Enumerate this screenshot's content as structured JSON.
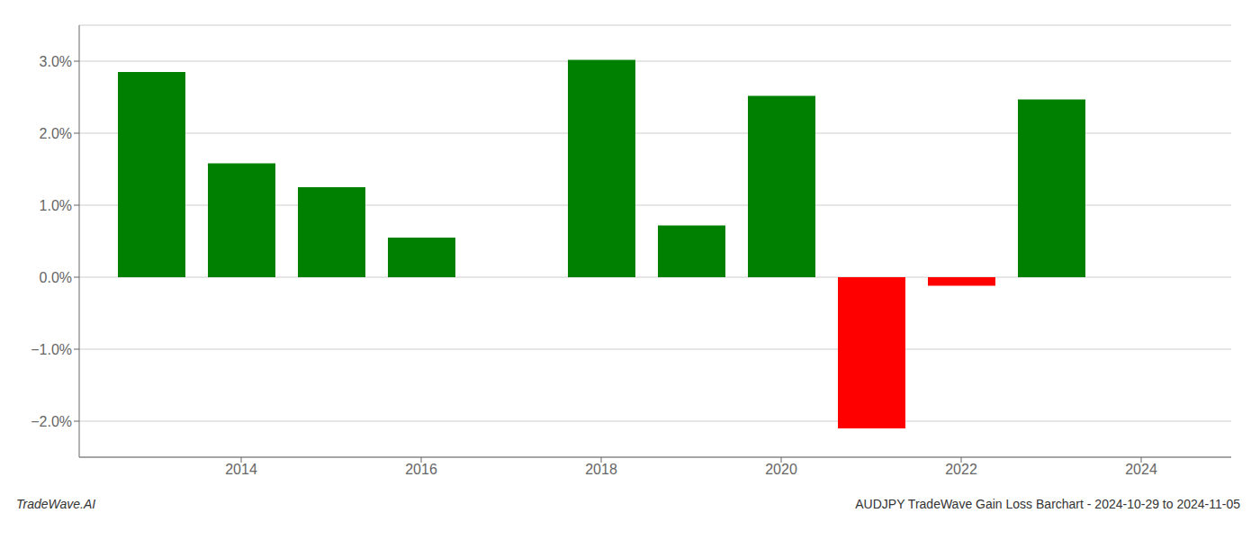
{
  "chart_data": {
    "type": "bar",
    "title": "AUDJPY TradeWave Gain Loss Barchart - 2024-10-29 to 2024-11-05",
    "annotations": [
      "TradeWave.AI"
    ],
    "x": [
      2013,
      2014,
      2015,
      2016,
      2018,
      2019,
      2020,
      2021,
      2022,
      2023
    ],
    "values": [
      2.85,
      1.58,
      1.25,
      0.55,
      3.02,
      0.72,
      2.52,
      -2.1,
      -0.12,
      2.47
    ],
    "colors": [
      "#008000",
      "#008000",
      "#008000",
      "#008000",
      "#008000",
      "#008000",
      "#008000",
      "#ff0000",
      "#ff0000",
      "#008000"
    ],
    "xlim": [
      2012.2,
      2025.0
    ],
    "xticks": [
      2014,
      2016,
      2018,
      2020,
      2022,
      2024
    ],
    "ylim": [
      -2.5,
      3.5
    ],
    "yticks": [
      {
        "value": -2.0,
        "label": "−2.0%"
      },
      {
        "value": -1.0,
        "label": "−1.0%"
      },
      {
        "value": 0.0,
        "label": "0.0%"
      },
      {
        "value": 1.0,
        "label": "1.0%"
      },
      {
        "value": 2.0,
        "label": "2.0%"
      },
      {
        "value": 3.0,
        "label": "3.0%"
      }
    ],
    "grid": true
  }
}
